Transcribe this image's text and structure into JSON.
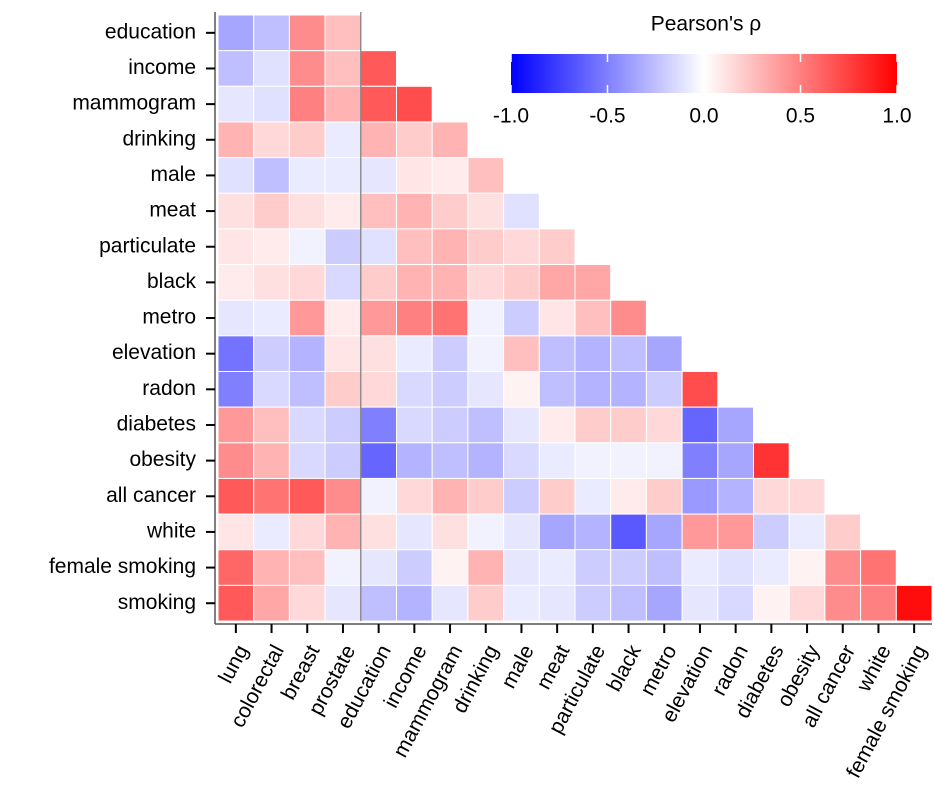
{
  "chart_data": {
    "type": "heatmap",
    "legend_title": "Pearson's ρ",
    "colors": [
      "#0000ff",
      "#ffffff",
      "#ff0000"
    ],
    "clim": [
      -1,
      1
    ],
    "cticks": [
      {
        "value": -1,
        "label": "-1.0"
      },
      -0.5,
      {
        "value": 0,
        "label": "0.0"
      },
      0.5,
      {
        "value": 1,
        "label": "1.0"
      }
    ],
    "rows": [
      "education",
      "income",
      "mammogram",
      "drinking",
      "male",
      "meat",
      "particulate",
      "black",
      "metro",
      "elevation",
      "radon",
      "diabetes",
      "obesity",
      "all cancer",
      "white",
      "female smoking",
      "smoking"
    ],
    "columns": [
      "lung",
      "colorectal",
      "breast",
      "prostate",
      "education",
      "income",
      "mammogram",
      "drinking",
      "male",
      "meat",
      "particulate",
      "black",
      "metro",
      "elevation",
      "radon",
      "diabetes",
      "obesity",
      "all cancer",
      "white",
      "female smoking"
    ],
    "values": [
      [
        -0.35,
        -0.25,
        0.45,
        0.25,
        null,
        null,
        null,
        null,
        null,
        null,
        null,
        null,
        null,
        null,
        null,
        null,
        null,
        null,
        null,
        null
      ],
      [
        -0.25,
        -0.12,
        0.45,
        0.25,
        0.65,
        null,
        null,
        null,
        null,
        null,
        null,
        null,
        null,
        null,
        null,
        null,
        null,
        null,
        null,
        null
      ],
      [
        -0.1,
        -0.12,
        0.5,
        0.3,
        0.65,
        0.7,
        null,
        null,
        null,
        null,
        null,
        null,
        null,
        null,
        null,
        null,
        null,
        null,
        null,
        null
      ],
      [
        0.3,
        0.15,
        0.2,
        -0.08,
        0.3,
        0.2,
        0.3,
        null,
        null,
        null,
        null,
        null,
        null,
        null,
        null,
        null,
        null,
        null,
        null,
        null
      ],
      [
        -0.12,
        -0.25,
        -0.08,
        -0.08,
        -0.1,
        0.1,
        0.08,
        0.25,
        null,
        null,
        null,
        null,
        null,
        null,
        null,
        null,
        null,
        null,
        null,
        null
      ],
      [
        0.12,
        0.2,
        0.12,
        0.08,
        0.25,
        0.3,
        0.2,
        0.12,
        -0.12,
        null,
        null,
        null,
        null,
        null,
        null,
        null,
        null,
        null,
        null,
        null
      ],
      [
        0.1,
        0.08,
        -0.05,
        -0.2,
        -0.12,
        0.25,
        0.3,
        0.2,
        0.15,
        0.2,
        null,
        null,
        null,
        null,
        null,
        null,
        null,
        null,
        null,
        null
      ],
      [
        0.08,
        0.12,
        0.15,
        -0.15,
        0.2,
        0.3,
        0.3,
        0.15,
        0.2,
        0.35,
        0.35,
        null,
        null,
        null,
        null,
        null,
        null,
        null,
        null,
        null
      ],
      [
        -0.1,
        -0.08,
        0.4,
        0.08,
        0.4,
        0.5,
        0.55,
        -0.05,
        -0.2,
        0.1,
        0.25,
        0.45,
        null,
        null,
        null,
        null,
        null,
        null,
        null,
        null
      ],
      [
        -0.55,
        -0.2,
        -0.3,
        0.1,
        0.12,
        -0.08,
        -0.2,
        -0.05,
        0.25,
        -0.25,
        -0.3,
        -0.25,
        -0.35,
        null,
        null,
        null,
        null,
        null,
        null,
        null
      ],
      [
        -0.5,
        -0.15,
        -0.25,
        0.2,
        0.15,
        -0.15,
        -0.2,
        -0.1,
        0.05,
        -0.25,
        -0.3,
        -0.3,
        -0.2,
        0.7,
        null,
        null,
        null,
        null,
        null,
        null
      ],
      [
        0.4,
        0.25,
        -0.15,
        -0.2,
        -0.5,
        -0.15,
        -0.2,
        -0.25,
        -0.1,
        0.08,
        0.2,
        0.2,
        0.15,
        -0.6,
        -0.35,
        null,
        null,
        null,
        null,
        null
      ],
      [
        0.45,
        0.3,
        -0.15,
        -0.2,
        -0.6,
        -0.3,
        -0.25,
        -0.3,
        -0.15,
        -0.08,
        -0.05,
        -0.05,
        -0.05,
        -0.5,
        -0.35,
        0.8,
        null,
        null,
        null,
        null
      ],
      [
        0.65,
        0.55,
        0.65,
        0.45,
        -0.05,
        0.15,
        0.3,
        0.2,
        -0.2,
        0.2,
        -0.08,
        0.08,
        0.2,
        -0.4,
        -0.3,
        0.15,
        0.15,
        null,
        null,
        null
      ],
      [
        0.1,
        -0.08,
        0.15,
        0.3,
        0.12,
        -0.1,
        0.12,
        -0.05,
        -0.1,
        -0.35,
        -0.3,
        -0.65,
        -0.35,
        0.4,
        0.4,
        -0.2,
        -0.08,
        0.2,
        null,
        null
      ],
      [
        0.6,
        0.3,
        0.25,
        -0.05,
        -0.1,
        -0.2,
        0.05,
        0.3,
        -0.1,
        -0.08,
        -0.2,
        -0.2,
        -0.25,
        -0.08,
        -0.12,
        -0.08,
        0.05,
        0.45,
        0.55,
        null
      ],
      [
        0.65,
        0.35,
        0.15,
        -0.1,
        -0.25,
        -0.3,
        -0.1,
        0.2,
        -0.08,
        -0.1,
        -0.2,
        -0.25,
        -0.35,
        -0.1,
        -0.15,
        0.05,
        0.15,
        0.45,
        0.5,
        0.95
      ]
    ]
  }
}
